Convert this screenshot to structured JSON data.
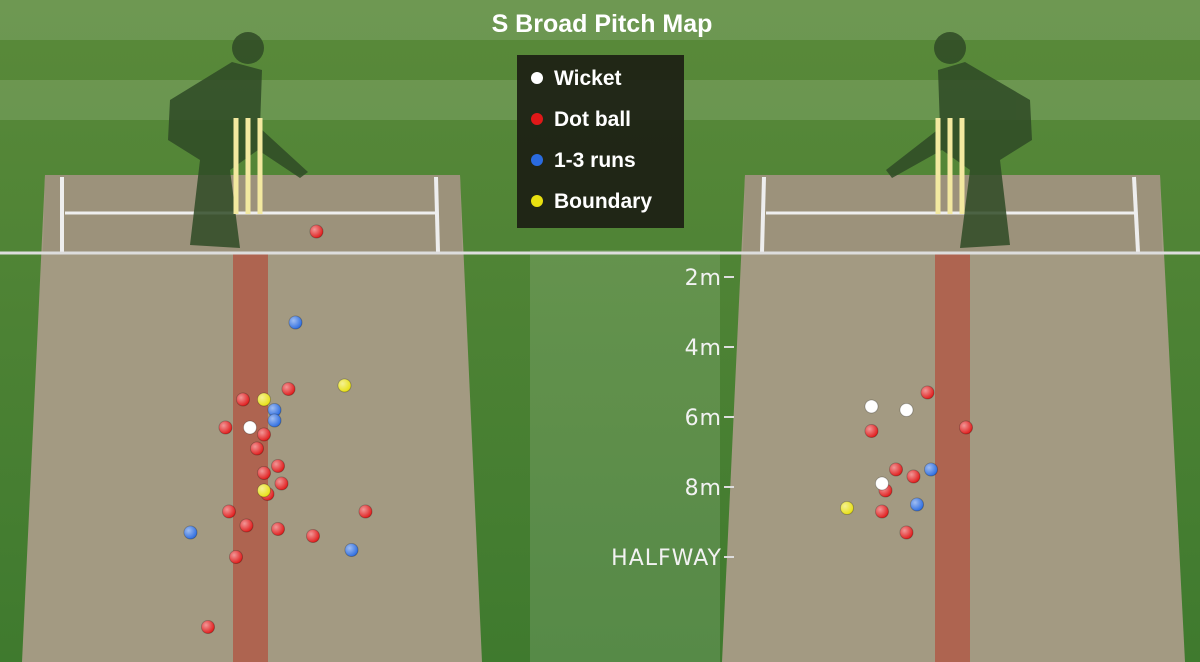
{
  "chart_data": {
    "type": "scatter",
    "title": "S Broad Pitch Map",
    "legend": [
      {
        "name": "Wicket",
        "color": "#ffffff"
      },
      {
        "name": "Dot ball",
        "color": "#e01818"
      },
      {
        "name": "1-3 runs",
        "color": "#2a6be0"
      },
      {
        "name": "Boundary",
        "color": "#e8e010"
      }
    ],
    "legend_placement": "top-center",
    "length_ticks": [
      {
        "value": 2,
        "label": "2m"
      },
      {
        "value": 4,
        "label": "4m"
      },
      {
        "value": 6,
        "label": "6m"
      },
      {
        "value": 8,
        "label": "8m"
      },
      {
        "value": 10,
        "label": "HALFWAY"
      }
    ],
    "panels": [
      {
        "side": "left",
        "balls": [
          {
            "type": "Dot ball",
            "line": 1.9,
            "length": 0.7
          },
          {
            "type": "1-3 runs",
            "line": 1.3,
            "length": 3.3
          },
          {
            "type": "Boundary",
            "line": 2.7,
            "length": 5.1
          },
          {
            "type": "Dot ball",
            "line": 1.1,
            "length": 5.2
          },
          {
            "type": "Dot ball",
            "line": -0.2,
            "length": 5.5
          },
          {
            "type": "Boundary",
            "line": 0.4,
            "length": 5.5
          },
          {
            "type": "1-3 runs",
            "line": 0.7,
            "length": 5.8
          },
          {
            "type": "1-3 runs",
            "line": 0.7,
            "length": 6.1
          },
          {
            "type": "Dot ball",
            "line": -0.7,
            "length": 6.3
          },
          {
            "type": "Wicket",
            "line": 0.0,
            "length": 6.3
          },
          {
            "type": "Dot ball",
            "line": 0.4,
            "length": 6.5
          },
          {
            "type": "Dot ball",
            "line": 0.2,
            "length": 6.9
          },
          {
            "type": "Dot ball",
            "line": 0.8,
            "length": 7.4
          },
          {
            "type": "Dot ball",
            "line": 0.4,
            "length": 7.6
          },
          {
            "type": "Dot ball",
            "line": 0.9,
            "length": 7.9
          },
          {
            "type": "Dot ball",
            "line": 0.5,
            "length": 8.2
          },
          {
            "type": "Boundary",
            "line": 0.4,
            "length": 8.1
          },
          {
            "type": "Dot ball",
            "line": 3.3,
            "length": 8.7
          },
          {
            "type": "Dot ball",
            "line": -0.6,
            "length": 8.7
          },
          {
            "type": "Dot ball",
            "line": -0.1,
            "length": 9.1
          },
          {
            "type": "Dot ball",
            "line": 0.8,
            "length": 9.2
          },
          {
            "type": "Dot ball",
            "line": 1.8,
            "length": 9.4
          },
          {
            "type": "1-3 runs",
            "line": -1.7,
            "length": 9.3
          },
          {
            "type": "1-3 runs",
            "line": 2.9,
            "length": 9.8
          },
          {
            "type": "Dot ball",
            "line": -0.4,
            "length": 10.0
          },
          {
            "type": "Dot ball",
            "line": -1.2,
            "length": 12.0
          }
        ]
      },
      {
        "side": "right",
        "balls": [
          {
            "type": "Dot ball",
            "line": -0.7,
            "length": 5.3
          },
          {
            "type": "Wicket",
            "line": -2.3,
            "length": 5.7
          },
          {
            "type": "Wicket",
            "line": -1.3,
            "length": 5.8
          },
          {
            "type": "Dot ball",
            "line": 0.4,
            "length": 6.3
          },
          {
            "type": "Dot ball",
            "line": -2.3,
            "length": 6.4
          },
          {
            "type": "1-3 runs",
            "line": -0.6,
            "length": 7.5
          },
          {
            "type": "Dot ball",
            "line": -1.6,
            "length": 7.5
          },
          {
            "type": "Dot ball",
            "line": -1.1,
            "length": 7.7
          },
          {
            "type": "Dot ball",
            "line": -1.9,
            "length": 8.1
          },
          {
            "type": "Wicket",
            "line": -2.0,
            "length": 7.9
          },
          {
            "type": "Boundary",
            "line": -3.0,
            "length": 8.6
          },
          {
            "type": "Dot ball",
            "line": -2.0,
            "length": 8.7
          },
          {
            "type": "1-3 runs",
            "line": -1.0,
            "length": 8.5
          },
          {
            "type": "Dot ball",
            "line": -1.3,
            "length": 9.3
          }
        ]
      }
    ]
  }
}
